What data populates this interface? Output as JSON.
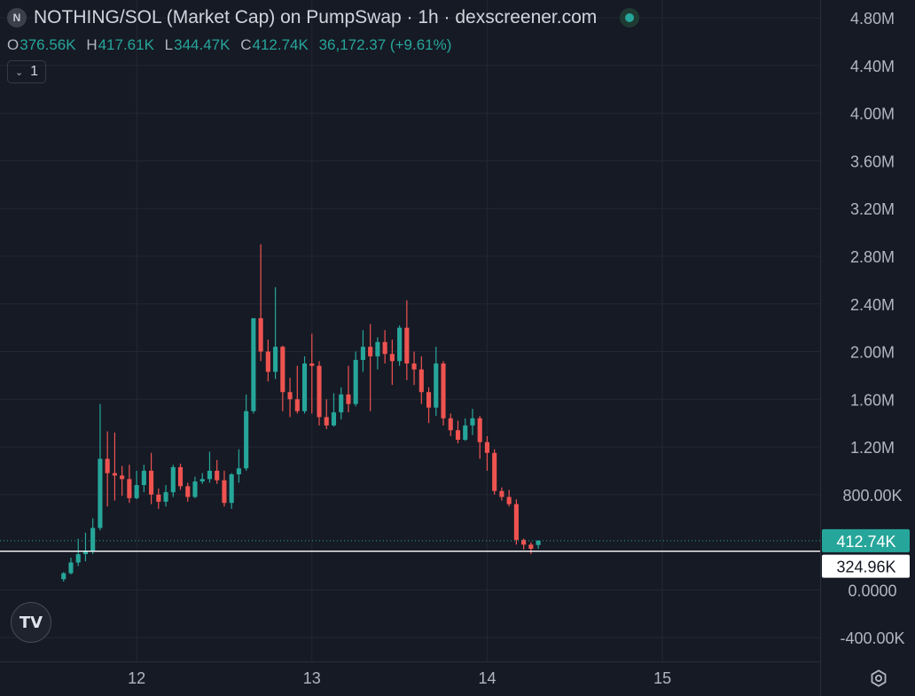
{
  "header": {
    "logo_letter": "N",
    "title": "NOTHING/SOL (Market Cap) on PumpSwap · 1h · dexscreener.com"
  },
  "ohlc": {
    "o_key": "O",
    "o": "376.56K",
    "h_key": "H",
    "h": "417.61K",
    "l_key": "L",
    "l": "344.47K",
    "c_key": "C",
    "c": "412.74K",
    "change": "36,172.37 (+9.61%)"
  },
  "indicator_toggle": {
    "chevron": "⌄",
    "count": "1"
  },
  "watermark": {
    "logo_text": "TV"
  },
  "icons": {
    "settings": "gear-icon",
    "status": "live-dot-icon"
  },
  "colors": {
    "up": "#26a69a",
    "down": "#ef5350",
    "background": "#161a25",
    "grid": "#232733"
  },
  "chart_data": {
    "type": "candlestick",
    "y_unit": "market cap",
    "ylim": [
      -600000,
      4950000
    ],
    "y_ticks": [
      {
        "value": 4800000,
        "label": "4.80M"
      },
      {
        "value": 4400000,
        "label": "4.40M"
      },
      {
        "value": 4000000,
        "label": "4.00M"
      },
      {
        "value": 3600000,
        "label": "3.60M"
      },
      {
        "value": 3200000,
        "label": "3.20M"
      },
      {
        "value": 2800000,
        "label": "2.80M"
      },
      {
        "value": 2400000,
        "label": "2.40M"
      },
      {
        "value": 2000000,
        "label": "2.00M"
      },
      {
        "value": 1600000,
        "label": "1.60M"
      },
      {
        "value": 1200000,
        "label": "1.20M"
      },
      {
        "value": 800000,
        "label": "800.00K"
      },
      {
        "value": 0,
        "label": "0.0000"
      },
      {
        "value": -400000,
        "label": "-400.00K"
      }
    ],
    "x_range_days": [
      11.22,
      15.9
    ],
    "x_ticks": [
      {
        "value": 12,
        "label": "12"
      },
      {
        "value": 13,
        "label": "13"
      },
      {
        "value": 14,
        "label": "14"
      },
      {
        "value": 15,
        "label": "15"
      }
    ],
    "grid": true,
    "first_candle_day": 11.583,
    "candle_interval_days": 0.04167,
    "candles": [
      [
        90000,
        140000,
        70000,
        150000
      ],
      [
        140000,
        230000,
        130000,
        270000
      ],
      [
        230000,
        300000,
        200000,
        430000
      ],
      [
        300000,
        330000,
        240000,
        480000
      ],
      [
        330000,
        520000,
        300000,
        600000
      ],
      [
        520000,
        1100000,
        500000,
        1560000
      ],
      [
        1100000,
        980000,
        700000,
        1330000
      ],
      [
        980000,
        960000,
        750000,
        1320000
      ],
      [
        960000,
        930000,
        790000,
        1040000
      ],
      [
        930000,
        770000,
        730000,
        1050000
      ],
      [
        770000,
        880000,
        760000,
        1000000
      ],
      [
        880000,
        1000000,
        820000,
        1050000
      ],
      [
        1000000,
        800000,
        720000,
        1150000
      ],
      [
        800000,
        740000,
        680000,
        850000
      ],
      [
        740000,
        820000,
        700000,
        880000
      ],
      [
        820000,
        1030000,
        780000,
        1050000
      ],
      [
        1030000,
        870000,
        840000,
        1060000
      ],
      [
        870000,
        780000,
        740000,
        900000
      ],
      [
        780000,
        910000,
        770000,
        950000
      ],
      [
        910000,
        930000,
        890000,
        980000
      ],
      [
        930000,
        1000000,
        900000,
        1160000
      ],
      [
        1000000,
        920000,
        890000,
        1090000
      ],
      [
        920000,
        730000,
        700000,
        1000000
      ],
      [
        730000,
        970000,
        680000,
        980000
      ],
      [
        970000,
        1020000,
        900000,
        1180000
      ],
      [
        1020000,
        1500000,
        1000000,
        1640000
      ],
      [
        1500000,
        2280000,
        1480000,
        2280000
      ],
      [
        2280000,
        2000000,
        1920000,
        2900000
      ],
      [
        2000000,
        1830000,
        1750000,
        2100000
      ],
      [
        1830000,
        2040000,
        1770000,
        2540000
      ],
      [
        2040000,
        1660000,
        1500000,
        2050000
      ],
      [
        1660000,
        1600000,
        1450000,
        1780000
      ],
      [
        1600000,
        1500000,
        1480000,
        1880000
      ],
      [
        1500000,
        1900000,
        1480000,
        1960000
      ],
      [
        1900000,
        1880000,
        1480000,
        2150000
      ],
      [
        1880000,
        1450000,
        1380000,
        1920000
      ],
      [
        1450000,
        1380000,
        1350000,
        1600000
      ],
      [
        1380000,
        1490000,
        1370000,
        1650000
      ],
      [
        1490000,
        1640000,
        1430000,
        1700000
      ],
      [
        1640000,
        1560000,
        1490000,
        1880000
      ],
      [
        1560000,
        1930000,
        1540000,
        2000000
      ],
      [
        1930000,
        2040000,
        1830000,
        2180000
      ],
      [
        2040000,
        1960000,
        1500000,
        2230000
      ],
      [
        1960000,
        2080000,
        1850000,
        2120000
      ],
      [
        2080000,
        1980000,
        1900000,
        2180000
      ],
      [
        1980000,
        1920000,
        1720000,
        2100000
      ],
      [
        1920000,
        2200000,
        1880000,
        2220000
      ],
      [
        2200000,
        1900000,
        1760000,
        2430000
      ],
      [
        1900000,
        1850000,
        1720000,
        2000000
      ],
      [
        1850000,
        1660000,
        1560000,
        1960000
      ],
      [
        1660000,
        1530000,
        1400000,
        1700000
      ],
      [
        1530000,
        1900000,
        1460000,
        2040000
      ],
      [
        1900000,
        1440000,
        1380000,
        1920000
      ],
      [
        1440000,
        1340000,
        1290000,
        1480000
      ],
      [
        1340000,
        1260000,
        1230000,
        1420000
      ],
      [
        1260000,
        1380000,
        1250000,
        1440000
      ],
      [
        1380000,
        1440000,
        1300000,
        1520000
      ],
      [
        1440000,
        1240000,
        1100000,
        1460000
      ],
      [
        1240000,
        1150000,
        1000000,
        1290000
      ],
      [
        1150000,
        830000,
        800000,
        1180000
      ],
      [
        830000,
        780000,
        750000,
        860000
      ],
      [
        780000,
        720000,
        700000,
        840000
      ],
      [
        720000,
        420000,
        380000,
        760000
      ],
      [
        420000,
        380000,
        340000,
        430000
      ],
      [
        380000,
        345000,
        300000,
        400000
      ],
      [
        376560,
        412740,
        344470,
        417610
      ]
    ],
    "markers": [
      {
        "value": 412740,
        "label": "412.74K",
        "style": "last-price"
      },
      {
        "value": 324960,
        "label": "324.96K",
        "style": "crosshair-line"
      }
    ]
  }
}
